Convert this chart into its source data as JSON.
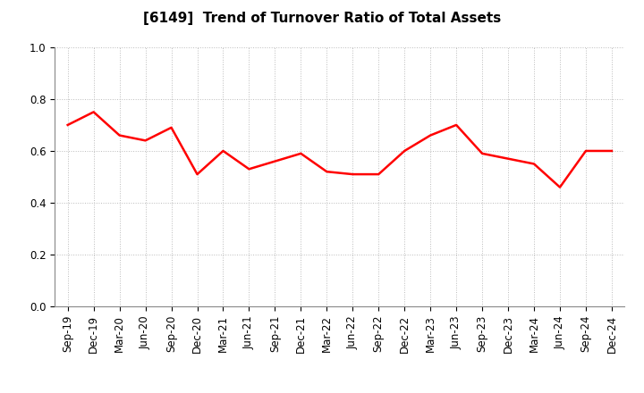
{
  "title": "[6149]  Trend of Turnover Ratio of Total Assets",
  "labels": [
    "Sep-19",
    "Dec-19",
    "Mar-20",
    "Jun-20",
    "Sep-20",
    "Dec-20",
    "Mar-21",
    "Jun-21",
    "Sep-21",
    "Dec-21",
    "Mar-22",
    "Jun-22",
    "Sep-22",
    "Dec-22",
    "Mar-23",
    "Jun-23",
    "Sep-23",
    "Dec-23",
    "Mar-24",
    "Jun-24",
    "Sep-24",
    "Dec-24"
  ],
  "values": [
    0.7,
    0.75,
    0.66,
    0.64,
    0.69,
    0.51,
    0.6,
    0.53,
    0.56,
    0.59,
    0.52,
    0.51,
    0.51,
    0.6,
    0.66,
    0.7,
    0.59,
    0.57,
    0.55,
    0.46,
    0.6,
    0.6
  ],
  "line_color": "#FF0000",
  "line_width": 1.8,
  "ylim": [
    0.0,
    1.0
  ],
  "yticks": [
    0.0,
    0.2,
    0.4,
    0.6,
    0.8,
    1.0
  ],
  "background_color": "#FFFFFF",
  "grid_color": "#BBBBBB",
  "title_fontsize": 11,
  "tick_fontsize": 8.5
}
